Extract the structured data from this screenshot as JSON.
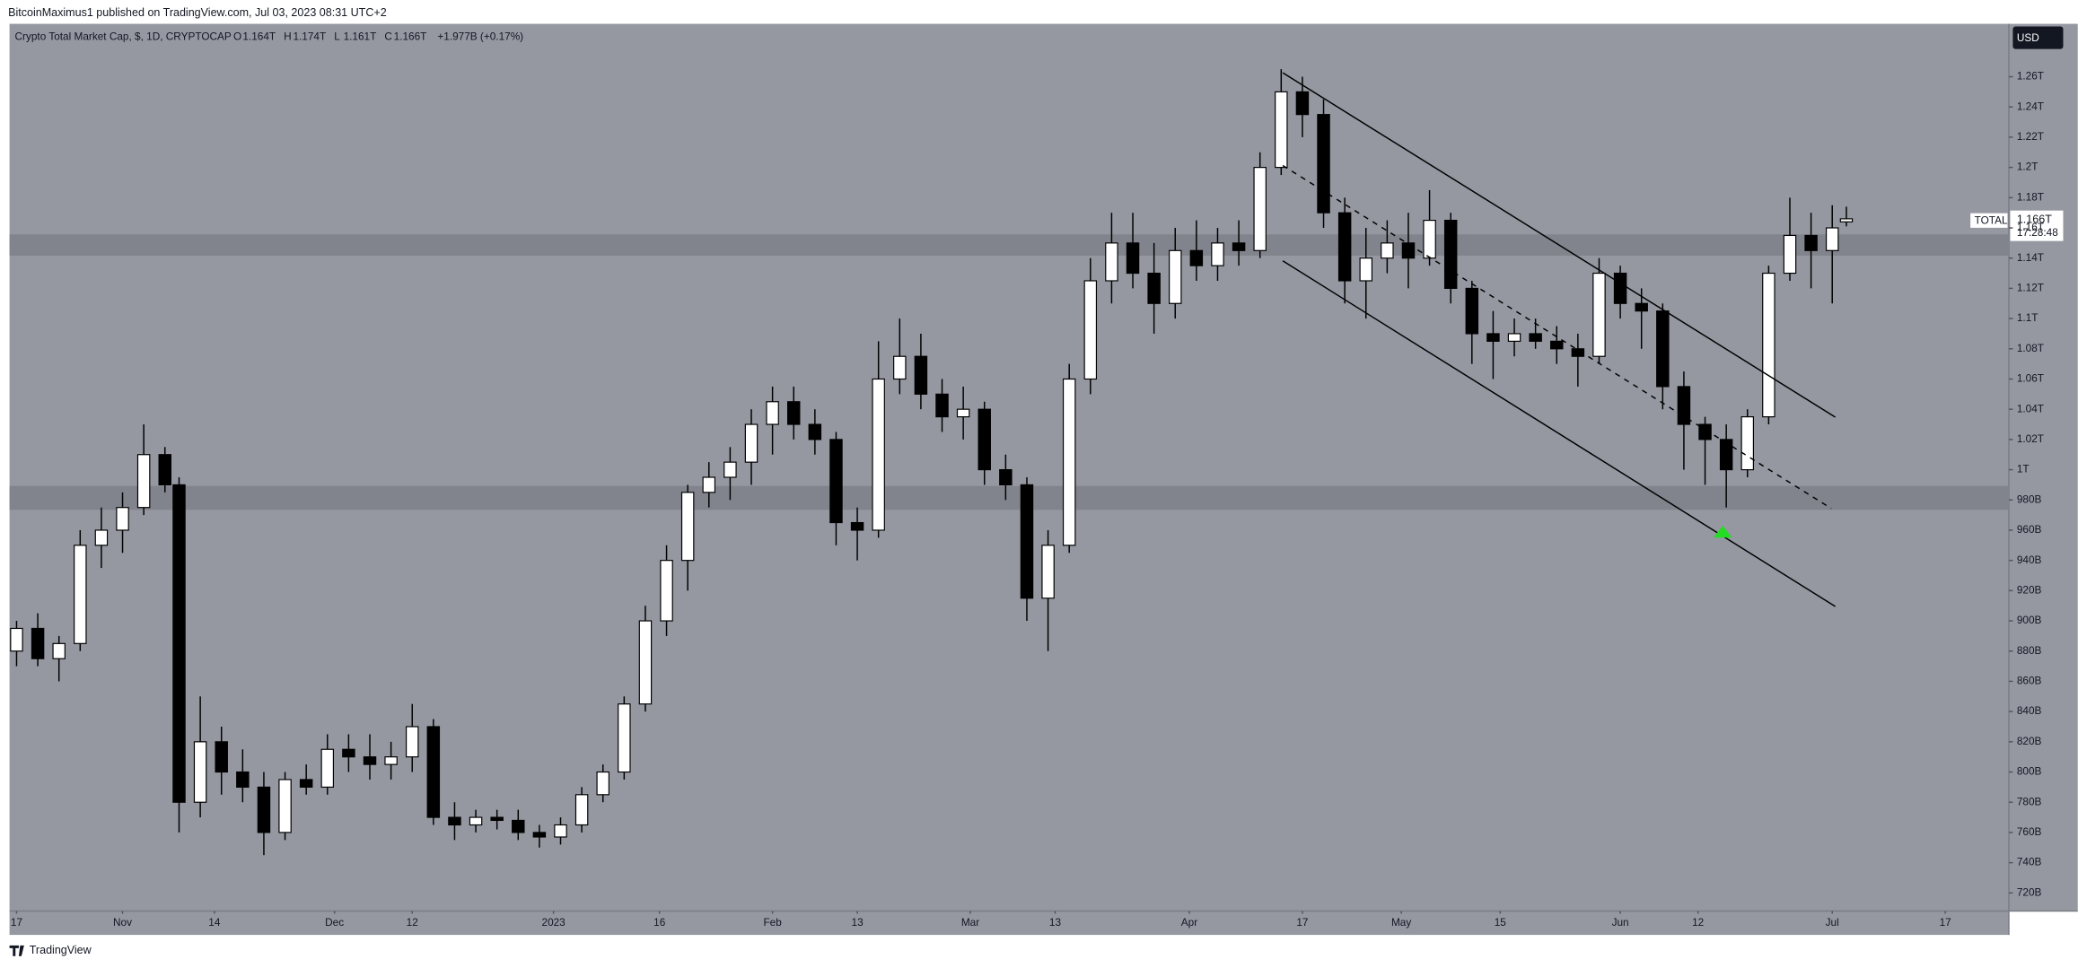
{
  "publisher_line": "BitcoinMaximus1 published on TradingView.com, Jul 03, 2023 08:31 UTC+2",
  "footer_logo": "TradingView",
  "currency": "USD",
  "symbol_tag": "TOTAL",
  "last_price": "1.166T",
  "countdown": "17:28:48",
  "chart_data": {
    "type": "candlestick",
    "title": "Crypto Total Market Cap, $, 1D, CRYPTOCAP",
    "ohlc_header": [
      {
        "key": "O",
        "text": "1.164T"
      },
      {
        "key": "H",
        "text": "1.174T"
      },
      {
        "key": "L",
        "text": "1.161T"
      },
      {
        "key": "C",
        "text": "1.166T"
      }
    ],
    "change_text": "+1.977B (+0.17%)",
    "x": [
      "2022-10-17",
      "2022-10-20",
      "2022-10-23",
      "2022-10-26",
      "2022-10-29",
      "2022-11-01",
      "2022-11-04",
      "2022-11-07",
      "2022-11-09",
      "2022-11-12",
      "2022-11-15",
      "2022-11-18",
      "2022-11-21",
      "2022-11-24",
      "2022-11-27",
      "2022-11-30",
      "2022-12-03",
      "2022-12-06",
      "2022-12-09",
      "2022-12-12",
      "2022-12-15",
      "2022-12-18",
      "2022-12-21",
      "2022-12-24",
      "2022-12-27",
      "2022-12-30",
      "2023-01-02",
      "2023-01-05",
      "2023-01-08",
      "2023-01-11",
      "2023-01-14",
      "2023-01-17",
      "2023-01-20",
      "2023-01-23",
      "2023-01-26",
      "2023-01-29",
      "2023-02-01",
      "2023-02-04",
      "2023-02-07",
      "2023-02-10",
      "2023-02-13",
      "2023-02-16",
      "2023-02-19",
      "2023-02-22",
      "2023-02-25",
      "2023-02-28",
      "2023-03-03",
      "2023-03-06",
      "2023-03-09",
      "2023-03-12",
      "2023-03-15",
      "2023-03-18",
      "2023-03-21",
      "2023-03-24",
      "2023-03-27",
      "2023-03-30",
      "2023-04-02",
      "2023-04-05",
      "2023-04-08",
      "2023-04-11",
      "2023-04-14",
      "2023-04-17",
      "2023-04-20",
      "2023-04-23",
      "2023-04-26",
      "2023-04-29",
      "2023-05-02",
      "2023-05-05",
      "2023-05-08",
      "2023-05-11",
      "2023-05-14",
      "2023-05-17",
      "2023-05-20",
      "2023-05-23",
      "2023-05-26",
      "2023-05-29",
      "2023-06-01",
      "2023-06-04",
      "2023-06-07",
      "2023-06-10",
      "2023-06-13",
      "2023-06-16",
      "2023-06-19",
      "2023-06-22",
      "2023-06-25",
      "2023-06-28",
      "2023-07-01",
      "2023-07-03"
    ],
    "open": [
      880,
      895,
      875,
      885,
      950,
      960,
      975,
      1010,
      990,
      780,
      820,
      800,
      790,
      760,
      795,
      790,
      815,
      810,
      805,
      810,
      830,
      770,
      765,
      770,
      768,
      760,
      757,
      765,
      785,
      800,
      845,
      900,
      940,
      985,
      995,
      1005,
      1030,
      1045,
      1030,
      1020,
      965,
      960,
      1060,
      1075,
      1050,
      1035,
      1040,
      1000,
      990,
      915,
      950,
      1060,
      1125,
      1150,
      1130,
      1110,
      1145,
      1135,
      1150,
      1145,
      1200,
      1250,
      1235,
      1170,
      1125,
      1140,
      1150,
      1140,
      1165,
      1120,
      1090,
      1085,
      1090,
      1085,
      1080,
      1075,
      1130,
      1110,
      1105,
      1055,
      1030,
      1020,
      1000,
      1035,
      1130,
      1155,
      1145,
      1164
    ],
    "high": [
      900,
      905,
      890,
      960,
      975,
      985,
      1030,
      1015,
      995,
      850,
      830,
      815,
      800,
      800,
      805,
      825,
      825,
      825,
      820,
      845,
      835,
      780,
      775,
      775,
      775,
      765,
      770,
      790,
      805,
      850,
      910,
      950,
      990,
      1005,
      1015,
      1040,
      1055,
      1055,
      1040,
      1025,
      975,
      1085,
      1100,
      1090,
      1060,
      1055,
      1045,
      1010,
      995,
      960,
      1070,
      1140,
      1170,
      1170,
      1150,
      1160,
      1165,
      1160,
      1165,
      1210,
      1265,
      1260,
      1245,
      1180,
      1160,
      1165,
      1170,
      1185,
      1170,
      1125,
      1105,
      1100,
      1100,
      1095,
      1090,
      1140,
      1135,
      1120,
      1110,
      1065,
      1035,
      1030,
      1040,
      1135,
      1180,
      1170,
      1175,
      1174
    ],
    "low": [
      870,
      870,
      860,
      880,
      935,
      945,
      970,
      985,
      760,
      770,
      785,
      780,
      745,
      755,
      785,
      785,
      800,
      795,
      795,
      800,
      765,
      755,
      760,
      762,
      755,
      750,
      752,
      760,
      780,
      795,
      840,
      890,
      920,
      975,
      980,
      990,
      1010,
      1020,
      1010,
      950,
      940,
      955,
      1050,
      1040,
      1025,
      1020,
      990,
      980,
      900,
      880,
      945,
      1050,
      1110,
      1120,
      1090,
      1100,
      1125,
      1125,
      1135,
      1140,
      1195,
      1220,
      1160,
      1110,
      1100,
      1130,
      1120,
      1135,
      1110,
      1070,
      1060,
      1075,
      1080,
      1070,
      1055,
      1070,
      1100,
      1080,
      1040,
      1000,
      990,
      975,
      995,
      1030,
      1125,
      1120,
      1110,
      1161
    ],
    "close": [
      895,
      875,
      885,
      950,
      960,
      975,
      1010,
      990,
      780,
      820,
      800,
      790,
      760,
      795,
      790,
      815,
      810,
      805,
      810,
      830,
      770,
      765,
      770,
      768,
      760,
      757,
      765,
      785,
      800,
      845,
      900,
      940,
      985,
      995,
      1005,
      1030,
      1045,
      1030,
      1020,
      965,
      960,
      1060,
      1075,
      1050,
      1035,
      1040,
      1000,
      990,
      915,
      950,
      1060,
      1125,
      1150,
      1130,
      1110,
      1145,
      1135,
      1150,
      1145,
      1200,
      1250,
      1235,
      1170,
      1125,
      1140,
      1150,
      1140,
      1165,
      1120,
      1090,
      1085,
      1090,
      1085,
      1080,
      1075,
      1130,
      1110,
      1105,
      1055,
      1030,
      1020,
      1000,
      1035,
      1130,
      1155,
      1145,
      1160,
      1166
    ],
    "up_color": "#ffffff",
    "down_color": "#000000",
    "ylim": [
      708,
      1295
    ],
    "yticks": [
      {
        "value": 720,
        "label": "720B"
      },
      {
        "value": 740,
        "label": "740B"
      },
      {
        "value": 760,
        "label": "760B"
      },
      {
        "value": 780,
        "label": "780B"
      },
      {
        "value": 800,
        "label": "800B"
      },
      {
        "value": 820,
        "label": "820B"
      },
      {
        "value": 840,
        "label": "840B"
      },
      {
        "value": 860,
        "label": "860B"
      },
      {
        "value": 880,
        "label": "880B"
      },
      {
        "value": 900,
        "label": "900B"
      },
      {
        "value": 920,
        "label": "920B"
      },
      {
        "value": 940,
        "label": "940B"
      },
      {
        "value": 960,
        "label": "960B"
      },
      {
        "value": 980,
        "label": "980B"
      },
      {
        "value": 1000,
        "label": "1T"
      },
      {
        "value": 1020,
        "label": "1.02T"
      },
      {
        "value": 1040,
        "label": "1.04T"
      },
      {
        "value": 1060,
        "label": "1.06T"
      },
      {
        "value": 1080,
        "label": "1.08T"
      },
      {
        "value": 1100,
        "label": "1.1T"
      },
      {
        "value": 1120,
        "label": "1.12T"
      },
      {
        "value": 1140,
        "label": "1.14T"
      },
      {
        "value": 1160,
        "label": "1.16T"
      },
      {
        "value": 1180,
        "label": "1.18T"
      },
      {
        "value": 1200,
        "label": "1.2T"
      },
      {
        "value": 1220,
        "label": "1.22T"
      },
      {
        "value": 1240,
        "label": "1.24T"
      },
      {
        "value": 1260,
        "label": "1.26T"
      }
    ],
    "xlim": [
      "2022-10-16",
      "2023-07-26"
    ],
    "xticks": [
      {
        "value": "2022-10-17",
        "label": "17"
      },
      {
        "value": "2022-11-01",
        "label": "Nov"
      },
      {
        "value": "2022-11-14",
        "label": "14"
      },
      {
        "value": "2022-12-01",
        "label": "Dec"
      },
      {
        "value": "2022-12-12",
        "label": "12"
      },
      {
        "value": "2023-01-01",
        "label": "2023"
      },
      {
        "value": "2023-01-16",
        "label": "16"
      },
      {
        "value": "2023-02-01",
        "label": "Feb"
      },
      {
        "value": "2023-02-13",
        "label": "13"
      },
      {
        "value": "2023-03-01",
        "label": "Mar"
      },
      {
        "value": "2023-03-13",
        "label": "13"
      },
      {
        "value": "2023-04-01",
        "label": "Apr"
      },
      {
        "value": "2023-04-17",
        "label": "17"
      },
      {
        "value": "2023-05-01",
        "label": "May"
      },
      {
        "value": "2023-05-15",
        "label": "15"
      },
      {
        "value": "2023-06-01",
        "label": "Jun"
      },
      {
        "value": "2023-06-12",
        "label": "12"
      },
      {
        "value": "2023-07-01",
        "label": "Jul"
      },
      {
        "value": "2023-07-17",
        "label": "17"
      }
    ],
    "grid": false
  }
}
